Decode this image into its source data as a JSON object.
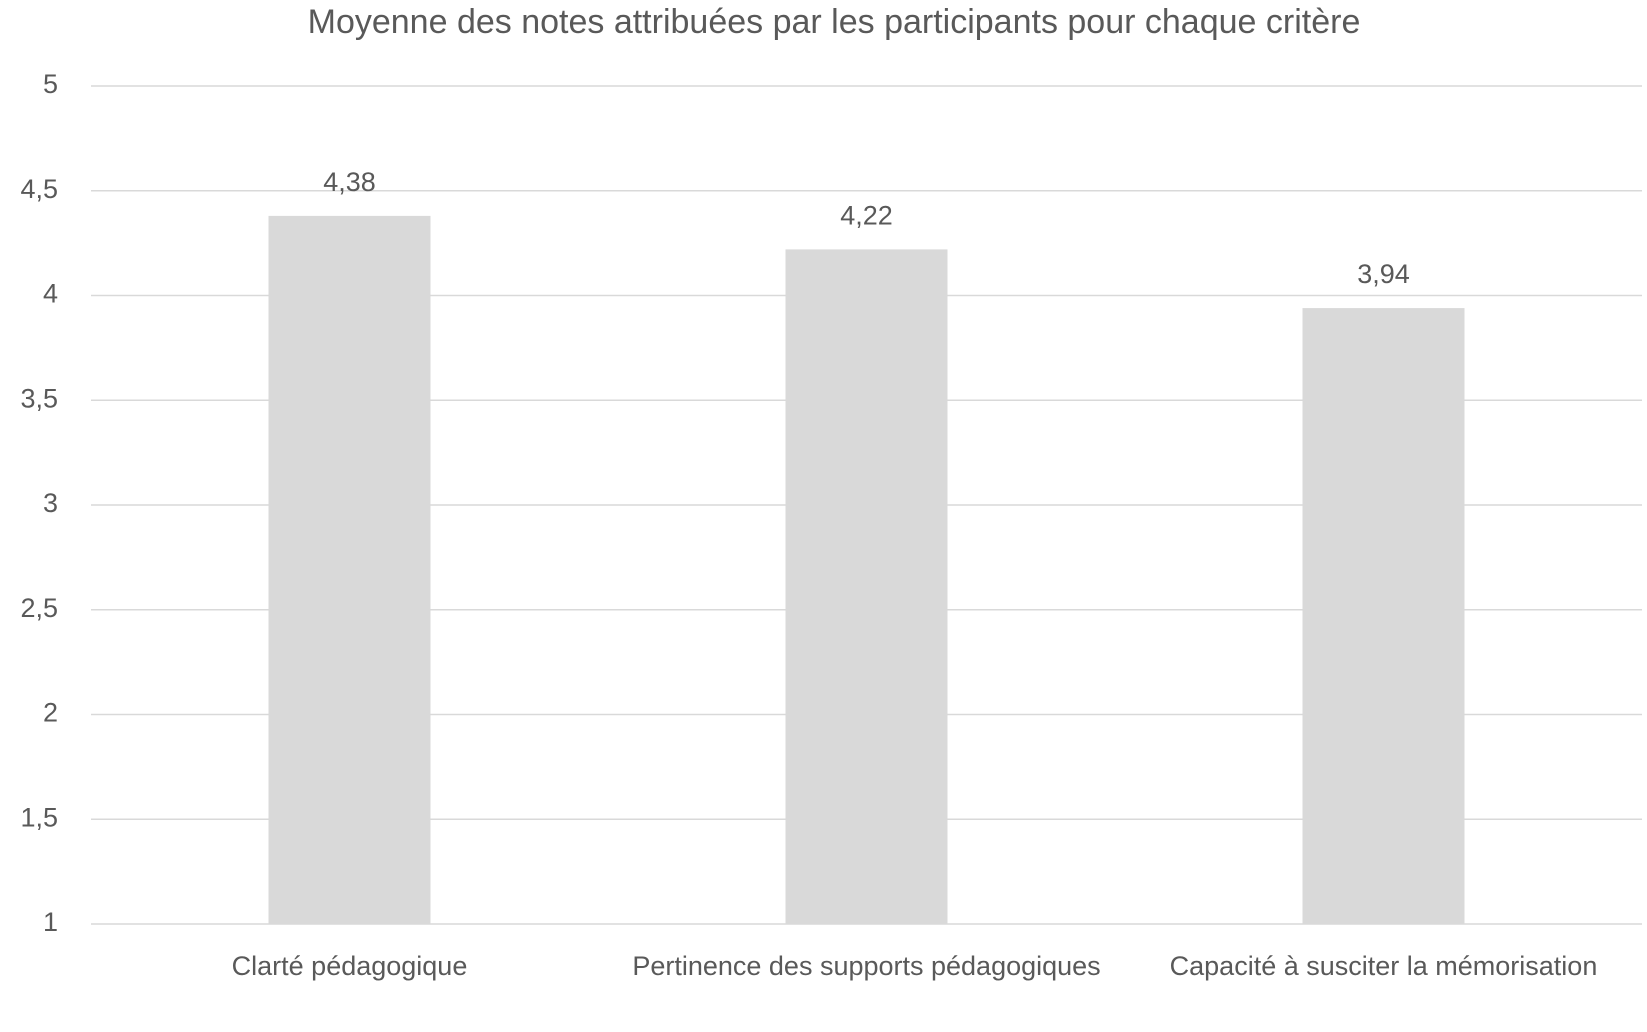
{
  "chart_data": {
    "type": "bar",
    "title": "Moyenne des notes attribuées par les participants pour chaque critère",
    "categories": [
      "Clarté pédagogique",
      "Pertinence des supports pédagogiques",
      "Capacité à susciter la mémorisation"
    ],
    "values": [
      4.38,
      4.22,
      3.94
    ],
    "value_labels": [
      "4,38",
      "4,22",
      "3,94"
    ],
    "color": "#d9d9d9",
    "ylim": [
      1,
      5
    ],
    "yticks": [
      1,
      {
        "value": 1.5,
        "label": "1,5"
      },
      2,
      {
        "value": 2.5,
        "label": "2,5"
      },
      3,
      {
        "value": 3.5,
        "label": "3,5"
      },
      4,
      {
        "value": 4.5,
        "label": "4,5"
      },
      5
    ],
    "grid": true
  }
}
